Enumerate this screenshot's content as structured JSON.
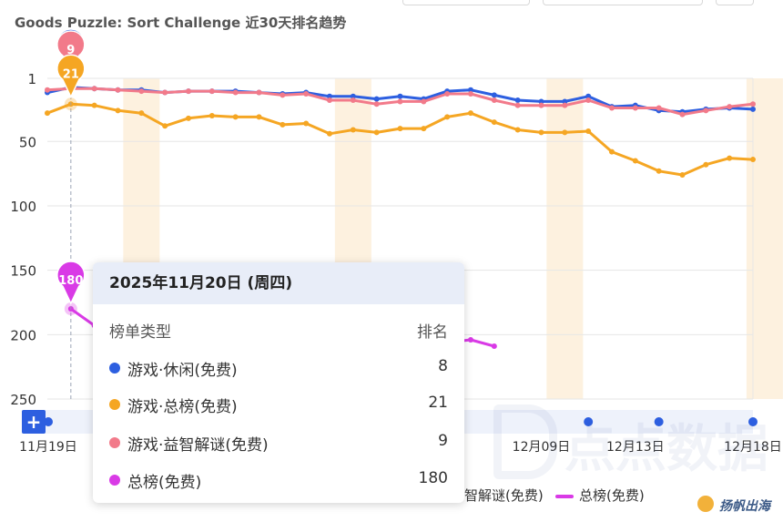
{
  "title": "Goods Puzzle: Sort Challenge 近30天排名趋势",
  "watermark": "点点数据",
  "brand": "扬帆出海",
  "tooltip": {
    "date": "2025年11月20日 (周四)",
    "header_type": "榜单类型",
    "header_rank": "排名",
    "rows": [
      {
        "name": "游戏·休闲(免费)",
        "value": "8",
        "color": "#2d5fe0"
      },
      {
        "name": "游戏·总榜(免费)",
        "value": "21",
        "color": "#f5a623"
      },
      {
        "name": "游戏·益智解谜(免费)",
        "value": "9",
        "color": "#f27a8a"
      },
      {
        "name": "总榜(免费)",
        "value": "180",
        "color": "#d93ae6"
      }
    ]
  },
  "legend": {
    "partial": "智解谜(免费)",
    "last": "总榜(免费)"
  },
  "controls": {
    "zoom_button": "+"
  },
  "chart_data": {
    "type": "line",
    "y_inverted": true,
    "ylim": [
      1,
      250
    ],
    "y_ticks": [
      "1",
      "50",
      "100",
      "150",
      "200",
      "250"
    ],
    "x_tick_labels": [
      "11月19日",
      "12月09日",
      "12月13日",
      "12月18日"
    ],
    "x_tick_days": [
      0,
      20,
      24,
      29
    ],
    "x_days_range": [
      -1,
      29
    ],
    "highlight_days": [
      3,
      12,
      21,
      29.5
    ],
    "event_days": [
      0,
      22,
      25,
      29
    ],
    "crosshair_day": 0,
    "series": [
      {
        "name": "游戏·休闲(免费)",
        "color": "#2d5fe0",
        "x": [
          -1,
          0,
          1,
          2,
          3,
          4,
          5,
          6,
          7,
          8,
          9,
          10,
          11,
          12,
          13,
          14,
          15,
          16,
          17,
          18,
          19,
          20,
          21,
          22,
          23,
          24,
          25,
          26,
          27,
          28,
          29
        ],
        "y": [
          12,
          8,
          9,
          10,
          10,
          12,
          11,
          11,
          11,
          12,
          13,
          12,
          15,
          15,
          17,
          15,
          17,
          11,
          10,
          14,
          18,
          19,
          19,
          15,
          23,
          22,
          26,
          27,
          25,
          24,
          25
        ]
      },
      {
        "name": "游戏·总榜(免费)",
        "color": "#f5a623",
        "x": [
          -1,
          0,
          1,
          2,
          3,
          4,
          5,
          6,
          7,
          8,
          9,
          10,
          11,
          12,
          13,
          14,
          15,
          16,
          17,
          18,
          19,
          20,
          21,
          22,
          23,
          24,
          25,
          26,
          27,
          28,
          29
        ],
        "y": [
          28,
          21,
          22,
          26,
          28,
          38,
          32,
          30,
          31,
          31,
          37,
          36,
          44,
          41,
          43,
          40,
          40,
          31,
          28,
          35,
          41,
          43,
          43,
          42,
          58,
          65,
          73,
          76,
          68,
          63,
          64
        ]
      },
      {
        "name": "游戏·益智解谜(免费)",
        "color": "#f27a8a",
        "x": [
          -1,
          0,
          1,
          2,
          3,
          4,
          5,
          6,
          7,
          8,
          9,
          10,
          11,
          12,
          13,
          14,
          15,
          16,
          17,
          18,
          19,
          20,
          21,
          22,
          23,
          24,
          25,
          26,
          27,
          28,
          29
        ],
        "y": [
          10,
          9,
          9,
          10,
          11,
          12,
          11,
          11,
          12,
          12,
          14,
          13,
          18,
          18,
          21,
          19,
          19,
          13,
          13,
          18,
          22,
          22,
          22,
          18,
          24,
          24,
          24,
          29,
          26,
          23,
          21
        ]
      },
      {
        "name": "总榜(免费)",
        "color": "#d93ae6",
        "x": [
          0,
          1,
          2,
          14,
          15,
          16,
          17,
          18
        ],
        "y": [
          180,
          193,
          208,
          208,
          206,
          206,
          204,
          209
        ]
      }
    ]
  }
}
